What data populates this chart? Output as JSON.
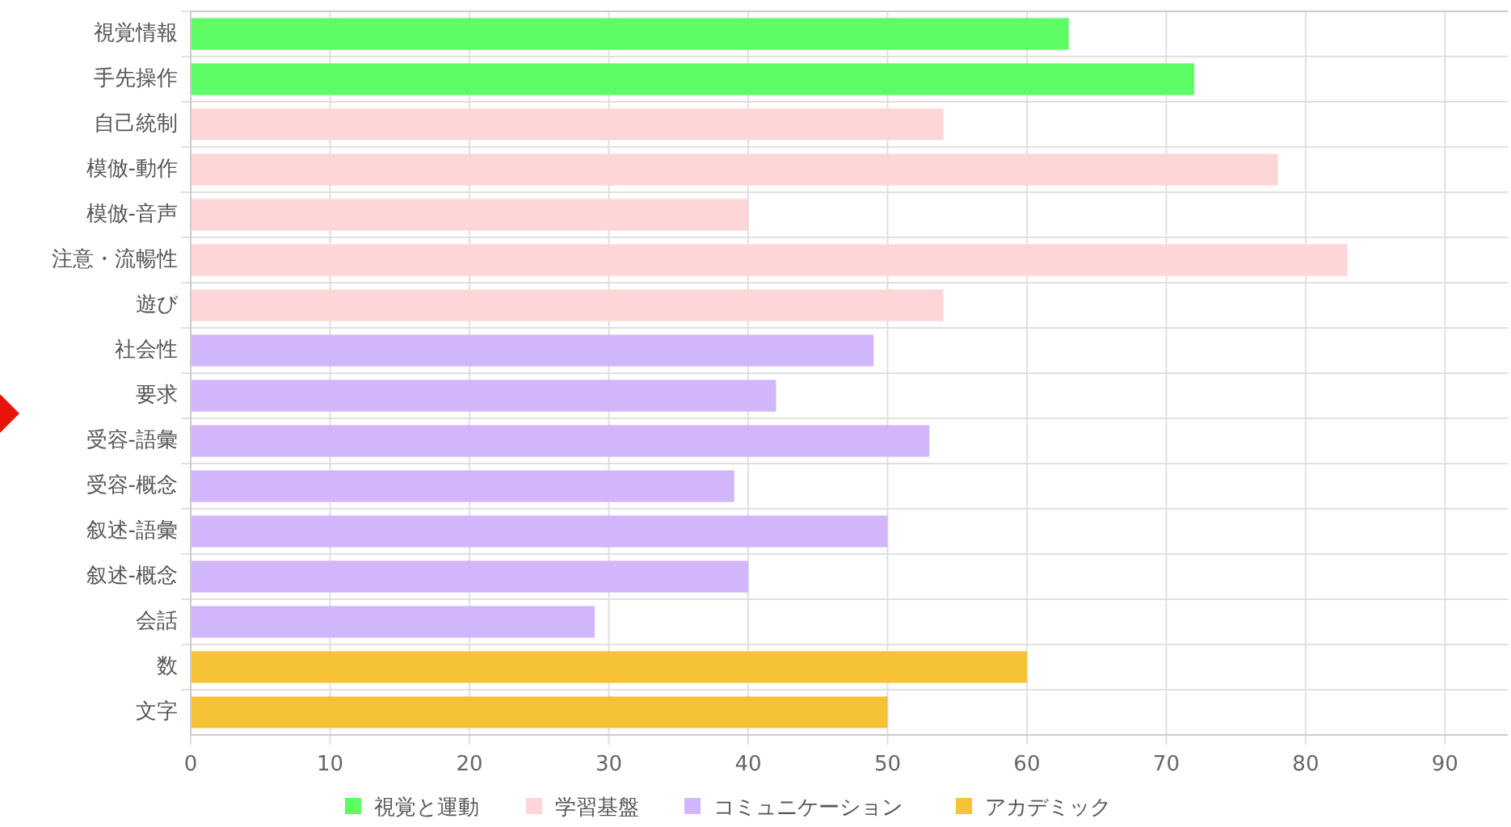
{
  "chart_data": {
    "type": "bar",
    "orientation": "horizontal",
    "stacked": true,
    "categories": [
      "視覚情報",
      "手先操作",
      "自己統制",
      "模倣-動作",
      "模倣-音声",
      "注意・流暢性",
      "遊び",
      "社会性",
      "要求",
      "受容-語彙",
      "受容-概念",
      "叙述-語彙",
      "叙述-概念",
      "会話",
      "数",
      "文字"
    ],
    "series": [
      {
        "name": "視覚と運動",
        "color": "#5efc64",
        "values": [
          63,
          72,
          null,
          null,
          null,
          null,
          null,
          null,
          null,
          null,
          null,
          null,
          null,
          null,
          null,
          null
        ]
      },
      {
        "name": "学習基盤",
        "color": "#fed6d7",
        "values": [
          null,
          null,
          54,
          78,
          40,
          83,
          54,
          null,
          null,
          null,
          null,
          null,
          null,
          null,
          null,
          null
        ]
      },
      {
        "name": "コミュニケーション",
        "color": "#d1b6fc",
        "values": [
          null,
          null,
          null,
          null,
          null,
          null,
          null,
          49,
          42,
          53,
          39,
          50,
          40,
          29,
          null,
          null
        ]
      },
      {
        "name": "アカデミック",
        "color": "#f6c338",
        "values": [
          null,
          null,
          null,
          null,
          null,
          null,
          null,
          null,
          null,
          null,
          null,
          null,
          null,
          null,
          60,
          50
        ]
      }
    ],
    "xlim": [
      0,
      94.5
    ],
    "xticks": [
      0,
      10,
      20,
      30,
      40,
      50,
      60,
      70,
      80,
      90
    ],
    "grid": true,
    "legend": "bottom"
  }
}
